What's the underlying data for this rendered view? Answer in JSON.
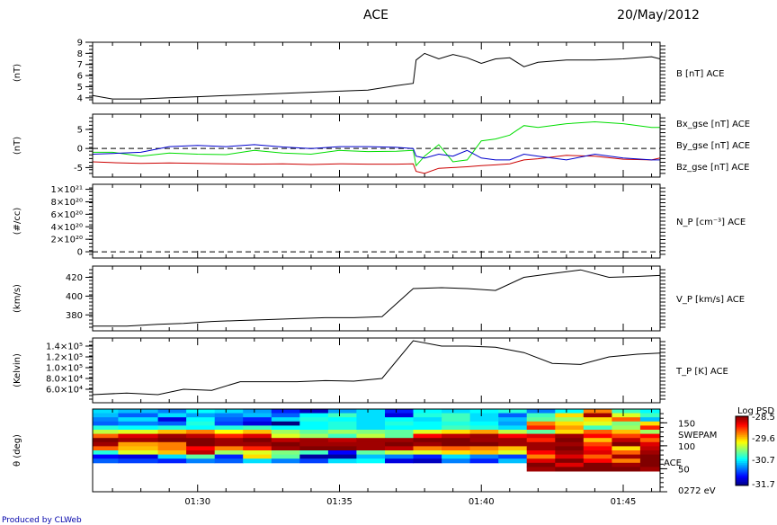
{
  "header": {
    "title": "ACE",
    "date": "20/May/2012"
  },
  "footer": {
    "credit": "Produced by CLWeb"
  },
  "x_axis": {
    "ticks": [
      "01:30",
      "01:35",
      "01:40",
      "01:45"
    ],
    "range_min": [
      86.3,
      106.3
    ],
    "tick_min": [
      90,
      95,
      100,
      105
    ]
  },
  "chart_data": [
    {
      "type": "line",
      "ylabel": "(nT)",
      "ylim": [
        3.5,
        9
      ],
      "yticks": [
        "4",
        "5",
        "6",
        "7",
        "8",
        "9"
      ],
      "ytick_vals": [
        4,
        5,
        6,
        7,
        8,
        9
      ],
      "series": [
        {
          "name": "B [nT] ACE",
          "color": "#000000",
          "x": [
            86.3,
            87,
            88,
            89,
            90,
            91,
            92,
            93,
            94,
            95,
            96,
            97,
            97.6,
            97.7,
            98,
            98.5,
            99,
            99.5,
            100,
            100.5,
            101,
            101.5,
            102,
            103,
            104,
            105,
            106,
            106.3
          ],
          "y": [
            4.2,
            3.9,
            3.9,
            4.0,
            4.1,
            4.2,
            4.3,
            4.4,
            4.5,
            4.6,
            4.7,
            5.1,
            5.3,
            7.4,
            8.0,
            7.5,
            7.9,
            7.6,
            7.1,
            7.5,
            7.6,
            6.8,
            7.2,
            7.4,
            7.4,
            7.5,
            7.7,
            7.5
          ]
        }
      ]
    },
    {
      "type": "line",
      "ylabel": "(nT)",
      "ylim": [
        -7.5,
        9
      ],
      "yticks": [
        "5",
        "0",
        "-5"
      ],
      "ytick_vals": [
        5,
        0,
        -5
      ],
      "dashed_zero": true,
      "series": [
        {
          "name": "Bx_gse [nT] ACE",
          "color": "#cc0000",
          "x": [
            86.3,
            87,
            88,
            89,
            90,
            91,
            92,
            93,
            94,
            95,
            96,
            97,
            97.6,
            97.7,
            98,
            98.5,
            99,
            99.5,
            100,
            100.5,
            101,
            101.5,
            102,
            103,
            104,
            105,
            106,
            106.3
          ],
          "y": [
            -3.5,
            -3.7,
            -3.9,
            -3.8,
            -3.9,
            -4.0,
            -4.1,
            -4.0,
            -4.2,
            -4.0,
            -4.1,
            -4.1,
            -4.0,
            -6.0,
            -6.5,
            -5.2,
            -5.0,
            -4.8,
            -4.5,
            -4.3,
            -4.0,
            -3.0,
            -2.7,
            -1.8,
            -2.0,
            -2.8,
            -3.0,
            -2.5
          ]
        },
        {
          "name": "By_gse [nT] ACE",
          "color": "#00dd00",
          "x": [
            86.3,
            87,
            88,
            89,
            90,
            91,
            92,
            93,
            94,
            95,
            96,
            97,
            97.6,
            97.7,
            98,
            98.5,
            99,
            99.5,
            100,
            100.5,
            101,
            101.5,
            102,
            103,
            104,
            105,
            106,
            106.3
          ],
          "y": [
            -1.0,
            -1.0,
            -2.0,
            -1.2,
            -1.5,
            -1.6,
            -0.5,
            -1.2,
            -1.5,
            -0.5,
            -0.8,
            -0.7,
            -0.5,
            -4.5,
            -2.0,
            1.0,
            -3.5,
            -3.0,
            2.0,
            2.5,
            3.5,
            6.0,
            5.5,
            6.5,
            7.0,
            6.5,
            5.5,
            5.5
          ]
        },
        {
          "name": "Bz_gse [nT] ACE",
          "color": "#0000cc",
          "x": [
            86.3,
            87,
            88,
            89,
            90,
            91,
            92,
            93,
            94,
            95,
            96,
            97,
            97.6,
            97.7,
            98,
            98.5,
            99,
            99.5,
            100,
            100.5,
            101,
            101.5,
            102,
            103,
            104,
            105,
            106,
            106.3
          ],
          "y": [
            -1.5,
            -1.3,
            -1.0,
            0.5,
            0.8,
            0.5,
            1.0,
            0.4,
            0.0,
            0.5,
            0.5,
            0.3,
            0.0,
            -2.0,
            -2.5,
            -1.5,
            -2.0,
            -0.5,
            -2.5,
            -3.0,
            -3.0,
            -1.5,
            -2.0,
            -3.0,
            -1.5,
            -2.5,
            -3.0,
            -3.0
          ]
        }
      ]
    },
    {
      "type": "line",
      "ylabel": "(#/cc)",
      "ylim": [
        -1e+20,
        1.08e+21
      ],
      "yticks": [
        "1×10²¹",
        "8×10²⁰",
        "6×10²⁰",
        "4×10²⁰",
        "2×10²⁰",
        "0"
      ],
      "ytick_vals": [
        1e+21,
        8e+20,
        6e+20,
        4e+20,
        2e+20,
        0
      ],
      "series": [
        {
          "name": "N_P [cm⁻³] ACE",
          "color": "#000000",
          "x": [
            86.3,
            106.3
          ],
          "y": [
            0,
            0
          ],
          "dashed": true
        }
      ]
    },
    {
      "type": "line",
      "ylabel": "(km/s)",
      "ylim": [
        363,
        432
      ],
      "yticks": [
        "420",
        "400",
        "380"
      ],
      "ytick_vals": [
        420,
        400,
        380
      ],
      "series": [
        {
          "name": "V_P [km/s] ACE",
          "color": "#000000",
          "x": [
            86.3,
            87.5,
            88.6,
            89.5,
            90.5,
            91.5,
            92.5,
            93.5,
            94.5,
            95.5,
            96.5,
            97.6,
            98.6,
            99.5,
            100.5,
            101.5,
            102.5,
            103.5,
            104.5,
            105.5,
            106.3
          ],
          "y": [
            368,
            368,
            370,
            371,
            373,
            374,
            375,
            376,
            377,
            377,
            378,
            408,
            409,
            408,
            406,
            420,
            424,
            428,
            420,
            421,
            422
          ]
        }
      ]
    },
    {
      "type": "line",
      "ylabel": "(Kelvin)",
      "ylim": [
        35000,
        155000
      ],
      "yticks": [
        "1.4×10⁵",
        "1.2×10⁵",
        "1.0×10⁵",
        "8.0×10⁴",
        "6.0×10⁴"
      ],
      "ytick_vals": [
        140000,
        120000,
        100000,
        80000,
        60000
      ],
      "series": [
        {
          "name": "T_P [K] ACE",
          "color": "#000000",
          "x": [
            86.3,
            87.5,
            88.6,
            89.5,
            90.5,
            91.5,
            92.5,
            93.5,
            94.5,
            95.5,
            96.5,
            97.6,
            98.6,
            99.5,
            100.5,
            101.5,
            102.5,
            103.5,
            104.5,
            105.5,
            106.3
          ],
          "y": [
            50000,
            53000,
            50000,
            60000,
            58000,
            74000,
            74000,
            74000,
            76000,
            75000,
            80000,
            150000,
            140000,
            140000,
            138000,
            128000,
            108000,
            106000,
            120000,
            125000,
            127000
          ]
        }
      ]
    },
    {
      "type": "heatmap",
      "ylabel": "θ (deg)",
      "yticks": [
        "150",
        "100",
        "50",
        "0272 eV"
      ],
      "ytick_vals": [
        150,
        100,
        50,
        0
      ],
      "extra_labels": [
        "SWEPAM",
        "ACE"
      ],
      "colorbar": {
        "title": "Log PSD",
        "ticks": [
          "-28.5",
          "-29.6",
          "-30.7",
          "-31.7"
        ],
        "range": [
          -31.7,
          -28.5
        ]
      },
      "x_edges": [
        86.3,
        87.2,
        88.6,
        89.6,
        90.6,
        91.6,
        92.6,
        93.6,
        94.6,
        95.6,
        96.6,
        97.6,
        98.6,
        99.6,
        100.6,
        101.6,
        102.6,
        103.6,
        104.6,
        105.6,
        106.3
      ],
      "y_edges": [
        180,
        171,
        162,
        153,
        144,
        135,
        126,
        117,
        108,
        99,
        90,
        81,
        72,
        63,
        54,
        45
      ],
      "values": [
        [
          -30.6,
          -30.7,
          -30.9,
          -30.5,
          -30.6,
          -30.8,
          -31.2,
          -31.5,
          -30.8,
          -30.6,
          -31.2,
          -30.5,
          -30.6,
          -30.5,
          -30.4,
          -30.9,
          -30.5,
          -29.3,
          -30.3,
          -30.5
        ],
        [
          -30.7,
          -31.0,
          -30.6,
          -30.8,
          -30.9,
          -30.7,
          -31.0,
          -30.5,
          -30.3,
          -30.6,
          -31.4,
          -30.4,
          -30.3,
          -30.6,
          -31.0,
          -30.3,
          -29.6,
          -28.6,
          -29.8,
          -30.3
        ],
        [
          -30.9,
          -30.6,
          -31.4,
          -30.5,
          -31.0,
          -31.2,
          -30.6,
          -30.4,
          -30.5,
          -30.6,
          -30.5,
          -30.6,
          -30.3,
          -30.6,
          -30.7,
          -30.2,
          -30.0,
          -29.6,
          -29.2,
          -30.7
        ],
        [
          -31.0,
          -30.9,
          -31.0,
          -30.4,
          -31.1,
          -31.4,
          -31.9,
          -30.5,
          -30.4,
          -30.6,
          -30.4,
          -30.5,
          -30.4,
          -30.5,
          -30.8,
          -29.3,
          -29.6,
          -29.8,
          -30.1,
          -29.6
        ],
        [
          -30.4,
          -30.5,
          -30.4,
          -30.5,
          -30.4,
          -30.3,
          -30.5,
          -30.5,
          -30.4,
          -30.6,
          -30.5,
          -30.5,
          -30.3,
          -30.4,
          -30.6,
          -29.0,
          -29.4,
          -30.3,
          -30.0,
          -29.0
        ],
        [
          -29.9,
          -29.8,
          -29.5,
          -29.3,
          -29.7,
          -29.5,
          -30.0,
          -30.2,
          -30.0,
          -30.1,
          -30.2,
          -29.8,
          -29.6,
          -29.4,
          -29.9,
          -30.2,
          -29.6,
          -29.2,
          -29.5,
          -30.0
        ],
        [
          -29.2,
          -28.8,
          -28.6,
          -28.7,
          -29.0,
          -28.8,
          -29.8,
          -30.0,
          -30.3,
          -29.9,
          -30.2,
          -28.9,
          -28.7,
          -28.6,
          -28.9,
          -28.8,
          -28.6,
          -28.9,
          -29.1,
          -28.9
        ],
        [
          -28.5,
          -28.6,
          -28.5,
          -28.5,
          -28.6,
          -28.5,
          -28.7,
          -28.6,
          -28.7,
          -28.6,
          -28.6,
          -28.5,
          -28.5,
          -28.6,
          -28.6,
          -29.0,
          -28.5,
          -29.5,
          -28.7,
          -29.2
        ],
        [
          -28.6,
          -29.4,
          -29.3,
          -28.5,
          -28.6,
          -28.6,
          -28.5,
          -28.6,
          -28.6,
          -28.6,
          -28.5,
          -28.6,
          -28.5,
          -28.5,
          -28.6,
          -28.6,
          -28.6,
          -29.1,
          -28.5,
          -28.8
        ],
        [
          -29.2,
          -29.5,
          -29.3,
          -28.9,
          -29.3,
          -29.0,
          -28.6,
          -28.5,
          -28.5,
          -28.6,
          -28.7,
          -29.3,
          -29.2,
          -29.3,
          -29.5,
          -28.6,
          -28.5,
          -28.9,
          -29.6,
          -28.7
        ],
        [
          -30.4,
          -29.8,
          -29.5,
          -28.7,
          -30.0,
          -29.8,
          -30.1,
          -30.3,
          -31.3,
          -30.2,
          -29.9,
          -29.8,
          -29.6,
          -29.5,
          -29.8,
          -28.9,
          -28.6,
          -28.8,
          -29.2,
          -28.6
        ],
        [
          -31.3,
          -31.4,
          -30.6,
          -30.2,
          -31.2,
          -29.6,
          -30.2,
          -31.6,
          -31.6,
          -30.7,
          -30.9,
          -31.2,
          -30.6,
          -30.9,
          -31.1,
          -29.3,
          -28.8,
          -29.2,
          -28.6,
          -28.5
        ],
        [
          -31.0,
          -31.1,
          -31.2,
          -30.9,
          -31.0,
          -30.6,
          -30.9,
          -31.1,
          -30.6,
          -30.5,
          -31.4,
          -31.5,
          -30.9,
          -31.2,
          -30.7,
          -28.8,
          -28.5,
          -28.9,
          -29.3,
          -28.5
        ],
        [
          null,
          null,
          null,
          null,
          null,
          null,
          null,
          null,
          null,
          null,
          null,
          null,
          null,
          null,
          null,
          -28.5,
          -28.8,
          -28.5,
          -28.6,
          -28.5
        ],
        [
          null,
          null,
          null,
          null,
          null,
          null,
          null,
          null,
          null,
          null,
          null,
          null,
          null,
          null,
          null,
          -28.6,
          -28.5,
          -28.5,
          -28.5,
          -28.6
        ]
      ]
    }
  ]
}
